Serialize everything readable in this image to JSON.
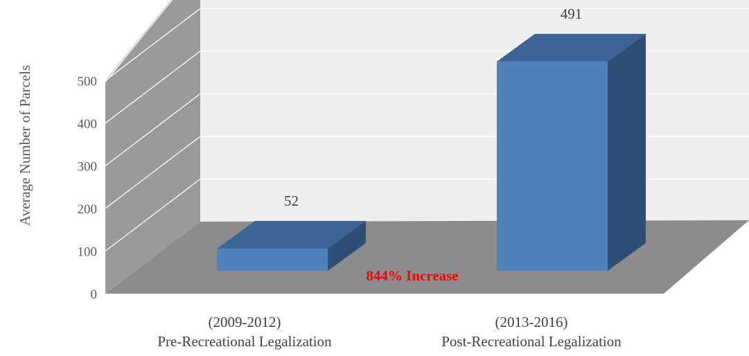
{
  "chart_data": {
    "type": "bar",
    "categories": [
      [
        "(2009-2012)",
        "Pre-Recreational Legalization"
      ],
      [
        "(2013-2016)",
        "Post-Recreational Legalization"
      ]
    ],
    "values": [
      52,
      491
    ],
    "data_labels": [
      "52",
      "491"
    ],
    "ylabel": "Average Number of Parcels",
    "xlabel": "",
    "ylim": [
      0,
      500
    ],
    "yticks": [
      0,
      100,
      200,
      300,
      400,
      500
    ],
    "grid": true,
    "three_d": true,
    "annotation": {
      "text": "844% Increase",
      "color": "#ff0000"
    },
    "colors": {
      "bar_front": "#4f81bd",
      "bar_top": "#3d6496",
      "bar_side": "#2e4e76",
      "back_wall": "#eeeeee",
      "side_wall": "#9a9a9a",
      "floor": "#8c8c8c",
      "gridline": "#ffffff"
    }
  }
}
